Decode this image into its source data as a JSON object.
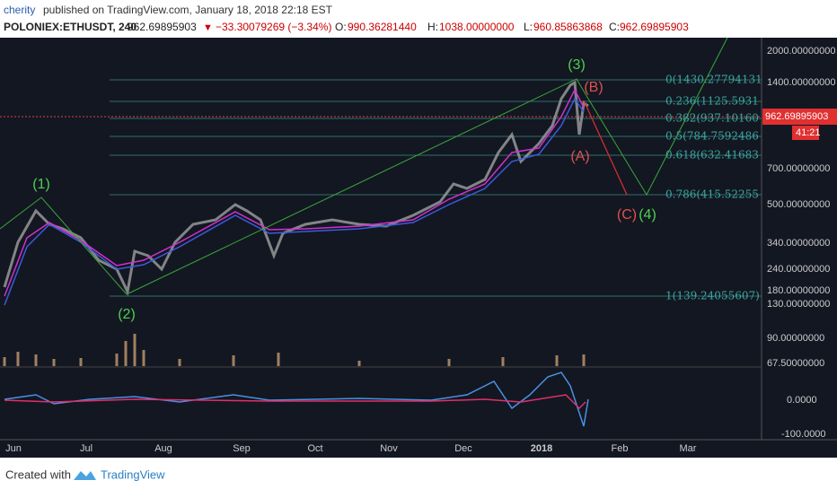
{
  "header": {
    "author": "cherity",
    "published": "published on TradingView.com, January 18, 2018 22:18 EST",
    "symbol": "POLONIEX:ETHUSDT, 240",
    "last": "962.69895903",
    "change": "−33.30079269 (−3.34%)",
    "ohlc": [
      {
        "label": "O:",
        "value": "990.36281440"
      },
      {
        "label": "H:",
        "value": "1038.00000000"
      },
      {
        "label": "L:",
        "value": "960.85863868"
      },
      {
        "label": "C:",
        "value": "962.69895903"
      }
    ]
  },
  "price_axis": [
    "2000.00000000",
    "1400.00000000",
    "700.00000000",
    "500.00000000",
    "340.00000000",
    "240.00000000",
    "180.00000000",
    "130.00000000",
    "90.00000000",
    "67.50000000"
  ],
  "current_price": "962.69895903",
  "countdown": "41:21",
  "oscillator_axis": [
    "0.0000",
    "-100.0000"
  ],
  "fib_levels": [
    "0(1430.27794131",
    "0.236(1125.5931",
    "0.382(937.10160",
    "0.5(784.7592486",
    "0.618(632.41683",
    "0.786(415.52255",
    "1(139.24055607)"
  ],
  "waves": [
    "(1)",
    "(2)",
    "(3)",
    "(4)",
    "(A)",
    "(B)",
    "(C)"
  ],
  "time_axis": [
    "Jun",
    "Jul",
    "Aug",
    "Sep",
    "Oct",
    "Nov",
    "Dec",
    "2018",
    "Feb",
    "Mar"
  ],
  "footer": {
    "created": "Created with",
    "brand": "TradingView"
  }
}
